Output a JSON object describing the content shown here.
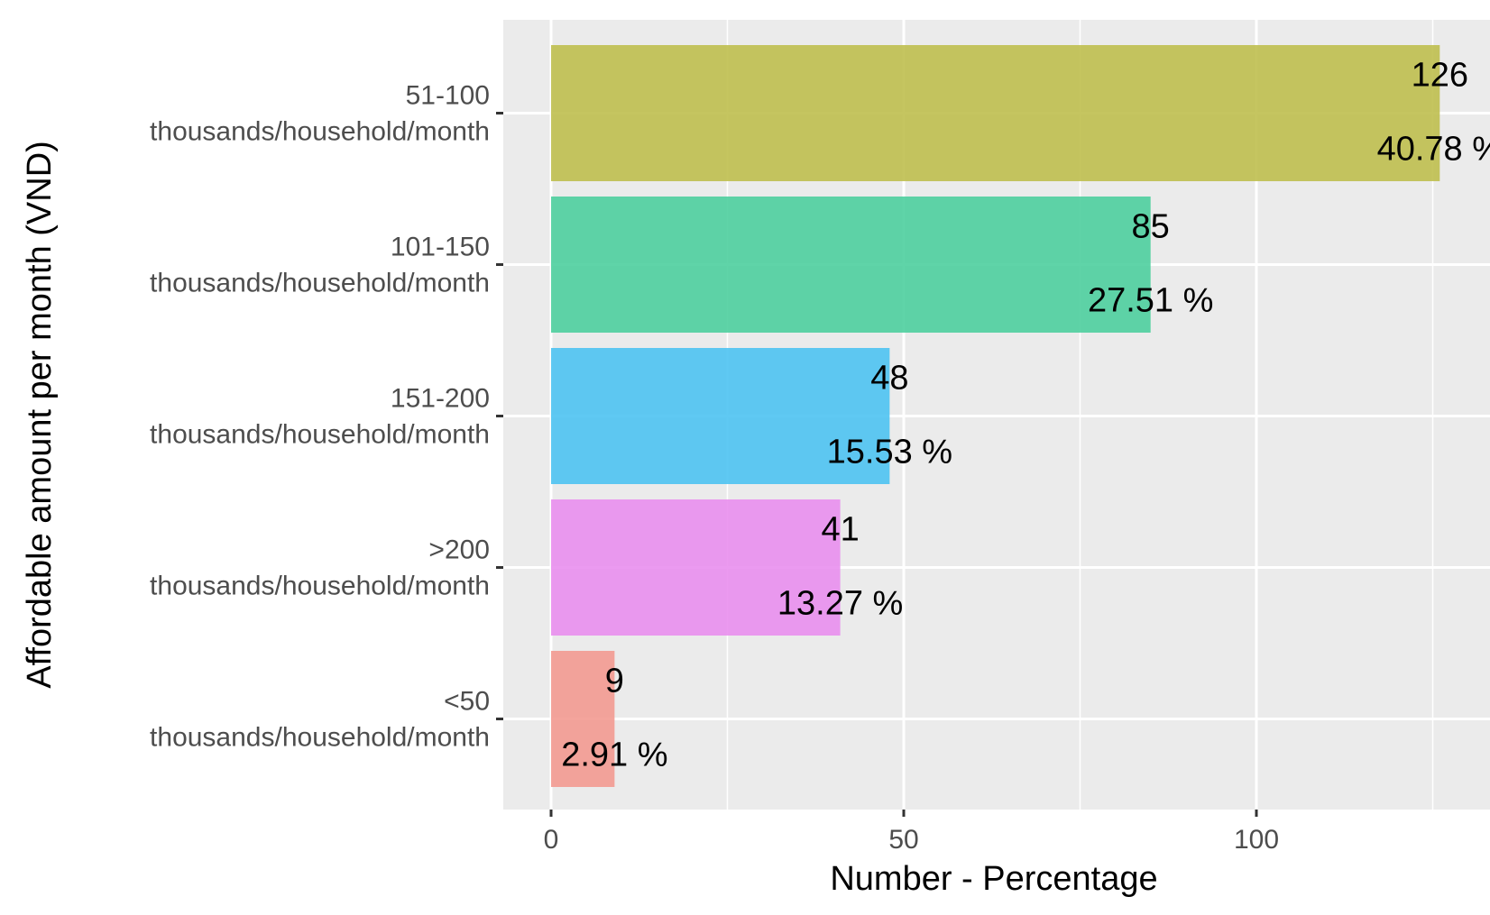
{
  "chart_data": {
    "type": "bar",
    "orientation": "horizontal",
    "xlabel": "Number - Percentage",
    "ylabel": "Affordable amount per month (VND)",
    "xlim": [
      -6,
      132
    ],
    "x_ticks": [
      0,
      50,
      100
    ],
    "grid": true,
    "legend": "none",
    "categories": [
      {
        "line1": "51-100",
        "line2": "thousands/household/month"
      },
      {
        "line1": "101-150",
        "line2": "thousands/household/month"
      },
      {
        "line1": "151-200",
        "line2": "thousands/household/month"
      },
      {
        "line1": ">200",
        "line2": "thousands/household/month"
      },
      {
        "line1": "<50",
        "line2": "thousands/household/month"
      }
    ],
    "values": [
      126,
      85,
      48,
      41,
      9
    ],
    "count_labels": [
      "126",
      "85",
      "48",
      "41",
      "9"
    ],
    "percent_labels": [
      "40.78 %",
      "27.51 %",
      "15.53 %",
      "13.27 %",
      "2.91 %"
    ],
    "colors": [
      "#BFBF4F",
      "#4ECF9F",
      "#4EC3F2",
      "#E98FEE",
      "#F39A91"
    ],
    "panel_background": "#EBEBEB",
    "grid_color": "#FFFFFF"
  }
}
